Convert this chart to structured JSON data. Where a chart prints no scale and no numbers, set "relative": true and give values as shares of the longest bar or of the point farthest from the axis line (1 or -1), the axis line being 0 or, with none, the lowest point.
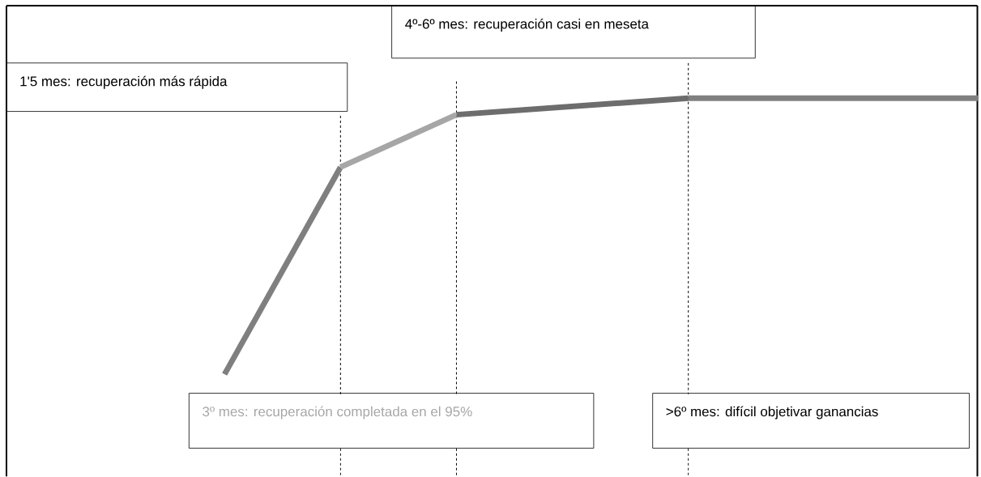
{
  "chart_data": {
    "type": "line",
    "relative": true,
    "grid": "x",
    "line_style": "solid",
    "categories": [
      null,
      null,
      null,
      null,
      null,
      null,
      null,
      null,
      null,
      null,
      null,
      null,
      null,
      null
    ],
    "series": [
      {
        "color": "#7f7f7f",
        "values": [
          0,
          null,
          0.75,
          null,
          null,
          null,
          null,
          null,
          null,
          null,
          null,
          null,
          null,
          null
        ]
      },
      {
        "color": "#a6a6a6",
        "values": [
          null,
          null,
          0.75,
          null,
          0.94,
          null,
          null,
          null,
          null,
          null,
          null,
          null,
          null,
          null
        ]
      },
      {
        "color": "#6d6d6d",
        "values": [
          null,
          null,
          null,
          null,
          0.94,
          null,
          null,
          null,
          1,
          null,
          null,
          null,
          null,
          null
        ]
      },
      {
        "color": "#808080",
        "values": [
          null,
          null,
          null,
          null,
          null,
          null,
          null,
          null,
          1,
          null,
          null,
          null,
          null,
          1
        ]
      }
    ],
    "annotations": [
      "4º-6º mes: recuperación casi en meseta",
      "1'5 mes: recuperación más rápida",
      "3º mes: recuperación completada en el 95%",
      ">6º mes: difícil objetivar ganancias"
    ]
  }
}
